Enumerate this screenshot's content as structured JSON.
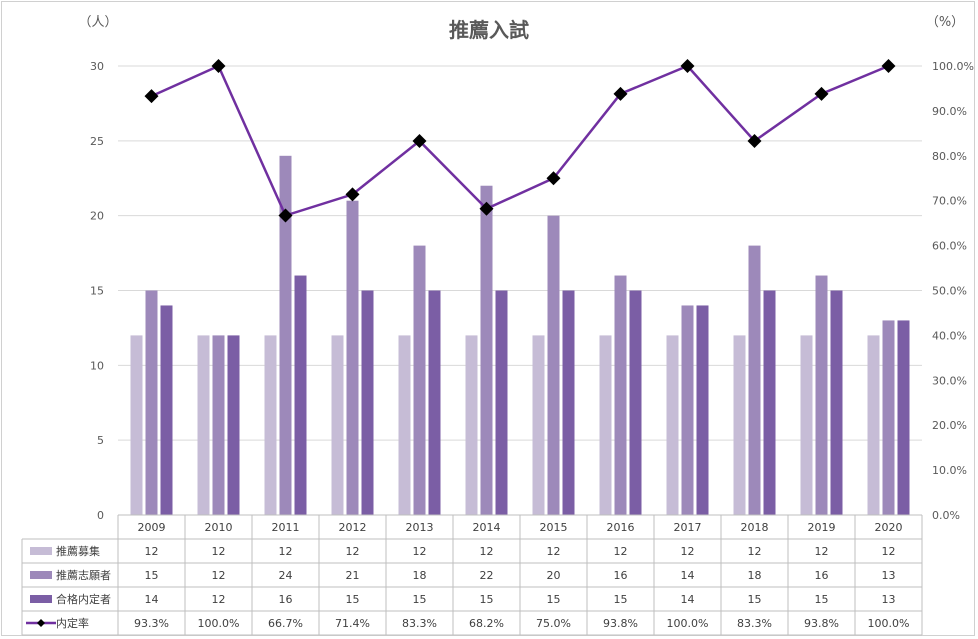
{
  "chart_data": {
    "type": "bar",
    "title": "推薦入試",
    "y_left_unit": "（人）",
    "y_right_unit": "（%）",
    "categories": [
      "2009",
      "2010",
      "2011",
      "2012",
      "2013",
      "2014",
      "2015",
      "2016",
      "2017",
      "2018",
      "2019",
      "2020"
    ],
    "ylim_left": [
      0,
      30
    ],
    "yticks_left": [
      "0",
      "5",
      "10",
      "15",
      "20",
      "25",
      "30"
    ],
    "ylim_right": [
      0,
      100
    ],
    "yticks_right": [
      "0.0%",
      "10.0%",
      "20.0%",
      "30.0%",
      "40.0%",
      "50.0%",
      "60.0%",
      "70.0%",
      "80.0%",
      "90.0%",
      "100.0%"
    ],
    "grid": true,
    "legend": "data table",
    "series": [
      {
        "name": "推薦募集",
        "type": "bar",
        "axis": "left",
        "color": "#c6bcd6",
        "values": [
          12,
          12,
          12,
          12,
          12,
          12,
          12,
          12,
          12,
          12,
          12,
          12
        ]
      },
      {
        "name": "推薦志願者",
        "type": "bar",
        "axis": "left",
        "color": "#9d89ba",
        "values": [
          15,
          12,
          24,
          21,
          18,
          22,
          20,
          16,
          14,
          18,
          16,
          13
        ]
      },
      {
        "name": "合格内定者",
        "type": "bar",
        "axis": "left",
        "color": "#7b5ea5",
        "values": [
          14,
          12,
          16,
          15,
          15,
          15,
          15,
          15,
          14,
          15,
          15,
          13
        ]
      },
      {
        "name": "内定率",
        "type": "line",
        "axis": "right",
        "color": "#7030a0",
        "marker": "diamond",
        "values": [
          93.3,
          100.0,
          66.7,
          71.4,
          83.3,
          68.2,
          75.0,
          93.8,
          100.0,
          83.3,
          93.8,
          100.0
        ],
        "labels": [
          "93.3%",
          "100.0%",
          "66.7%",
          "71.4%",
          "83.3%",
          "68.2%",
          "75.0%",
          "93.8%",
          "100.0%",
          "83.3%",
          "93.8%",
          "100.0%"
        ]
      }
    ]
  }
}
